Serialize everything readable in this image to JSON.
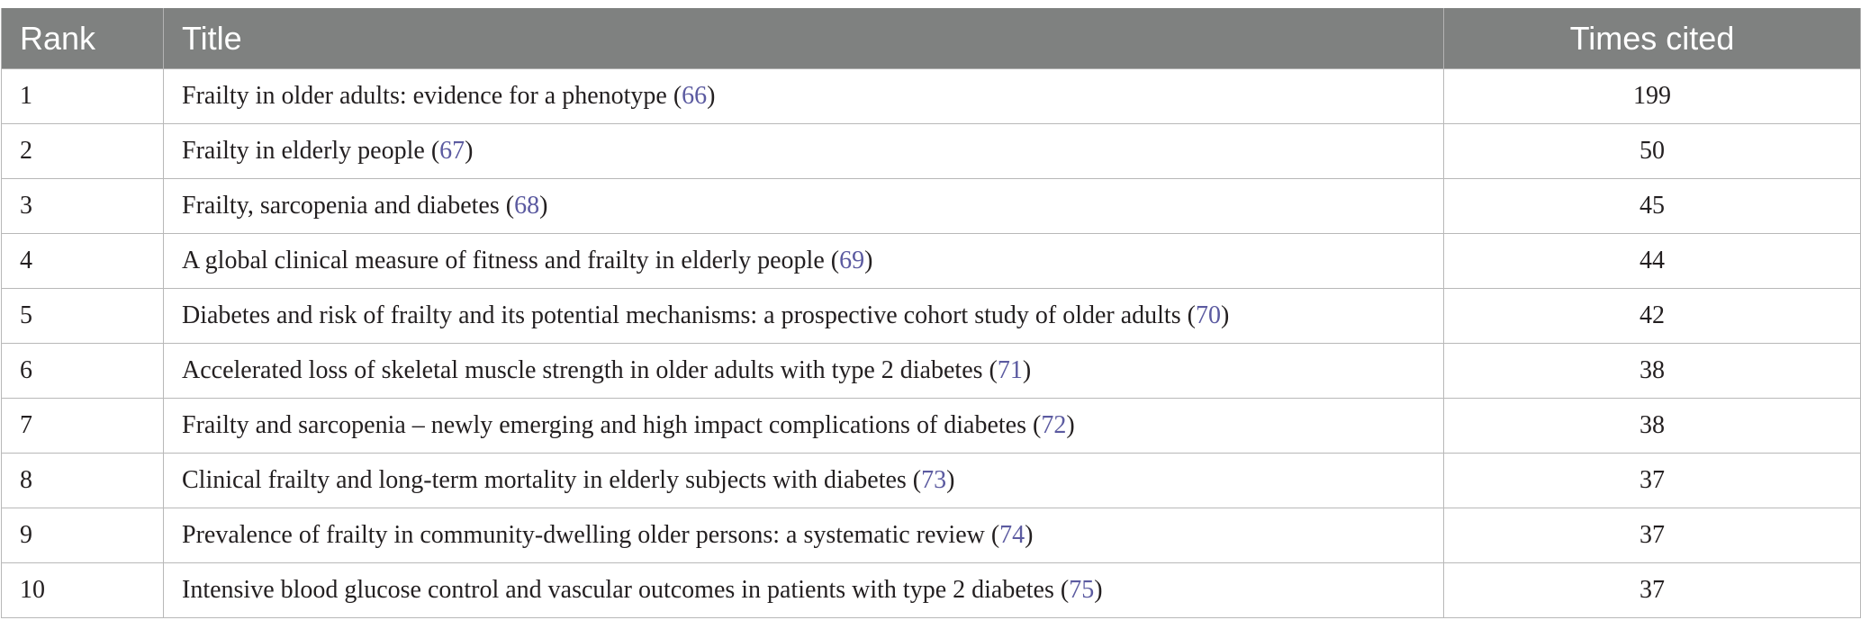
{
  "table": {
    "headers": {
      "rank": "Rank",
      "title": "Title",
      "cites": "Times cited"
    },
    "rows": [
      {
        "rank": "1",
        "title": "Frailty in older adults: evidence for a phenotype",
        "ref": "66",
        "cites": "199"
      },
      {
        "rank": "2",
        "title": "Frailty in elderly people",
        "ref": "67",
        "cites": "50"
      },
      {
        "rank": "3",
        "title": "Frailty, sarcopenia and diabetes",
        "ref": "68",
        "cites": "45"
      },
      {
        "rank": "4",
        "title": "A global clinical measure of fitness and frailty in elderly people",
        "ref": "69",
        "cites": "44"
      },
      {
        "rank": "5",
        "title": "Diabetes and risk of frailty and its potential mechanisms: a prospective cohort study of older adults",
        "ref": "70",
        "cites": "42"
      },
      {
        "rank": "6",
        "title": "Accelerated loss of skeletal muscle strength in older adults with type 2 diabetes",
        "ref": "71",
        "cites": "38"
      },
      {
        "rank": "7",
        "title": "Frailty and sarcopenia – newly emerging and high impact complications of diabetes",
        "ref": "72",
        "cites": "38"
      },
      {
        "rank": "8",
        "title": "Clinical frailty and long-term mortality in elderly subjects with diabetes",
        "ref": "73",
        "cites": "37"
      },
      {
        "rank": "9",
        "title": "Prevalence of frailty in community-dwelling older persons: a systematic review",
        "ref": "74",
        "cites": "37"
      },
      {
        "rank": "10",
        "title": "Intensive blood glucose control and vascular outcomes in patients with type 2 diabetes",
        "ref": "75",
        "cites": "37"
      }
    ]
  },
  "colors": {
    "header_bg": "#7f8180",
    "header_text": "#ffffff",
    "reference_link": "#5b5aa0",
    "border": "#b8b8b8"
  }
}
